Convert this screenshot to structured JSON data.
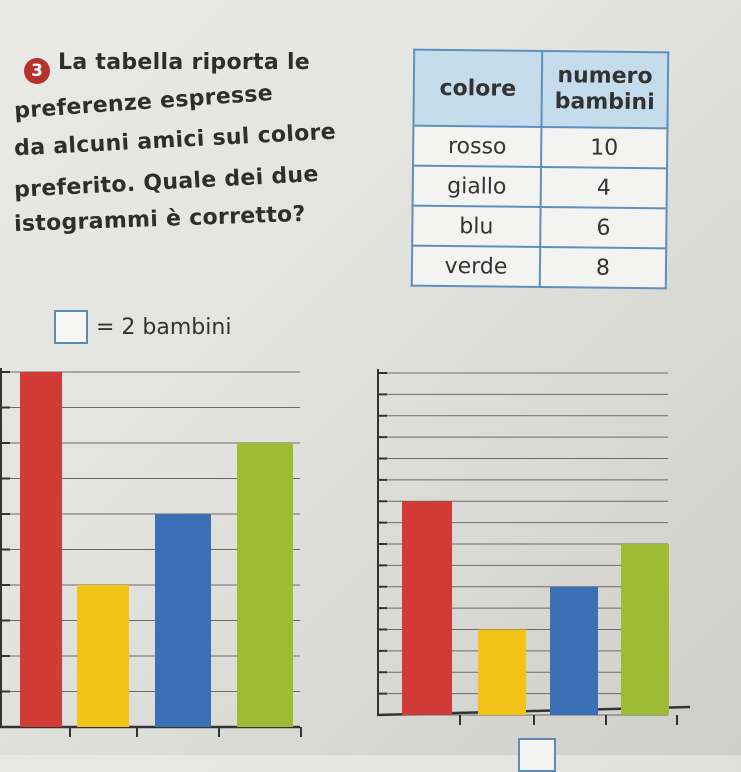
{
  "exercise": {
    "number": "3",
    "lines": [
      "La tabella riporta le",
      "preferenze espresse",
      "da alcuni amici sul colore",
      "preferito. Quale dei due",
      "istogrammi è corretto?"
    ]
  },
  "table": {
    "headers": [
      "colore",
      "numero bambini"
    ],
    "rows": [
      [
        "rosso",
        "10"
      ],
      [
        "giallo",
        "4"
      ],
      [
        "blu",
        "6"
      ],
      [
        "verde",
        "8"
      ]
    ]
  },
  "legend": {
    "text": "= 2 bambini"
  },
  "chart_data": [
    {
      "type": "bar",
      "categories": [
        "rosso",
        "giallo",
        "blu",
        "verde"
      ],
      "values": [
        10,
        4,
        6,
        8
      ],
      "ylim": [
        0,
        10
      ],
      "grid": true,
      "colors": [
        "#d23a35",
        "#f2c417",
        "#3b6fb6",
        "#9dbb33"
      ]
    },
    {
      "type": "bar",
      "categories": [
        "rosso",
        "giallo",
        "blu",
        "verde"
      ],
      "values": [
        10,
        4,
        6,
        8
      ],
      "ylim": [
        0,
        16
      ],
      "grid": true,
      "colors": [
        "#d23a35",
        "#f2c417",
        "#3b6fb6",
        "#9dbb33"
      ]
    }
  ]
}
